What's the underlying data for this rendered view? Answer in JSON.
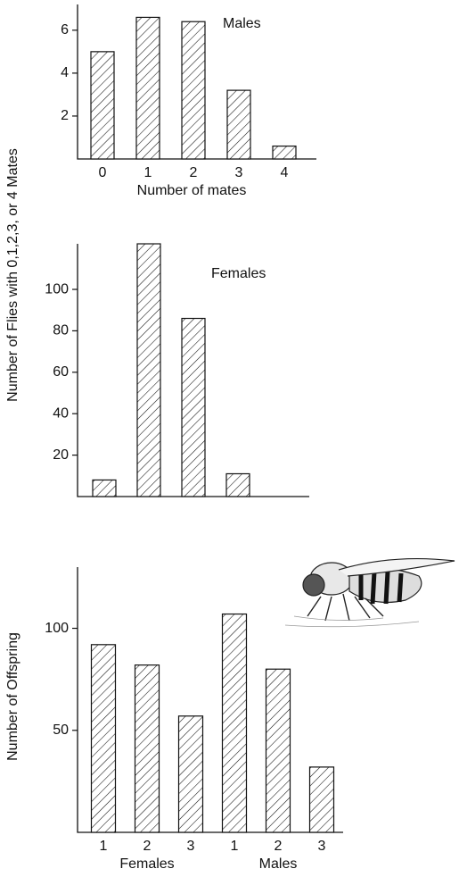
{
  "chart_data": [
    {
      "type": "bar",
      "title": "Males",
      "categories": [
        "0",
        "1",
        "2",
        "3",
        "4"
      ],
      "values": [
        5,
        6.6,
        6.4,
        3.2,
        0.6
      ],
      "xlabel": "Number of mates",
      "ylabel": "Number of Flies with 0,1,2,3, or 4 Mates",
      "ylim": [
        0,
        7.2
      ],
      "yticks": [
        2,
        4,
        6
      ]
    },
    {
      "type": "bar",
      "title": "Females",
      "categories": [
        null,
        null,
        null,
        null
      ],
      "values": [
        8,
        122,
        86,
        11
      ],
      "ylim": [
        0,
        122
      ],
      "yticks": [
        20,
        40,
        60,
        80,
        100
      ]
    },
    {
      "type": "bar",
      "categories": [
        "1",
        "2",
        "3",
        "1",
        "2",
        "3"
      ],
      "groups": [
        "Females",
        "Males"
      ],
      "values": [
        92,
        82,
        57,
        107,
        80,
        32
      ],
      "ylabel": "Number of Offspring",
      "ylim": [
        0,
        130
      ],
      "yticks": [
        50,
        100
      ]
    }
  ]
}
